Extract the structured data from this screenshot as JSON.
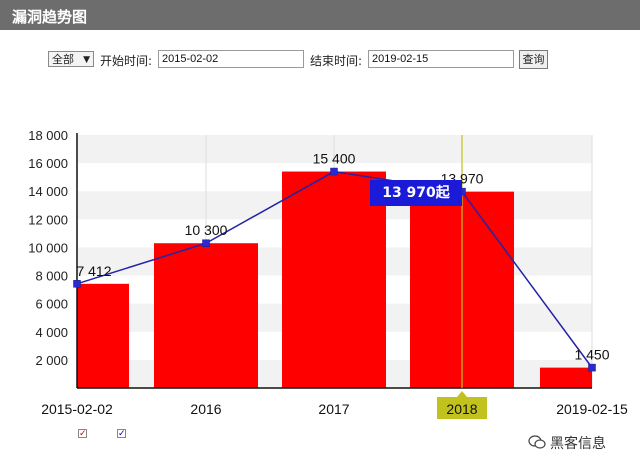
{
  "header": {
    "title": "漏洞趋势图"
  },
  "filters": {
    "scope_select": "全部",
    "start_label": "开始时间:",
    "start_value": "2015-02-02",
    "end_label": "结束时间:",
    "end_value": "2019-02-15",
    "query_button": "查询"
  },
  "chart_data": {
    "type": "bar",
    "categories": [
      "2015-02-02",
      "2016",
      "2017",
      "2018",
      "2019-02-15"
    ],
    "values": [
      7412,
      10300,
      15400,
      13970,
      1450
    ],
    "value_labels": [
      "7 412",
      "10 300",
      "15 400",
      "13 970",
      "1 450"
    ],
    "line_series": [
      7412,
      10300,
      15400,
      13970,
      1450
    ],
    "ylim": [
      0,
      18000
    ],
    "yticks": [
      "18 000",
      "16 000",
      "14 000",
      "12 000",
      "10 000",
      "8 000",
      "6 000",
      "4 000",
      "2 000"
    ],
    "ytick_values": [
      18000,
      16000,
      14000,
      12000,
      10000,
      8000,
      6000,
      4000,
      2000
    ],
    "highlighted_category": "2018",
    "tooltip": "13 970起",
    "colors": {
      "bar": "#ff0000",
      "line": "#2323a8",
      "highlight": "#c2c21e",
      "tooltip": "#1a1ad8"
    }
  },
  "legend": {
    "items": [
      {
        "check": "✓",
        "color": "#d40000"
      },
      {
        "check": "✓",
        "color": "#0000aa"
      }
    ]
  },
  "watermark": "黑客信息"
}
